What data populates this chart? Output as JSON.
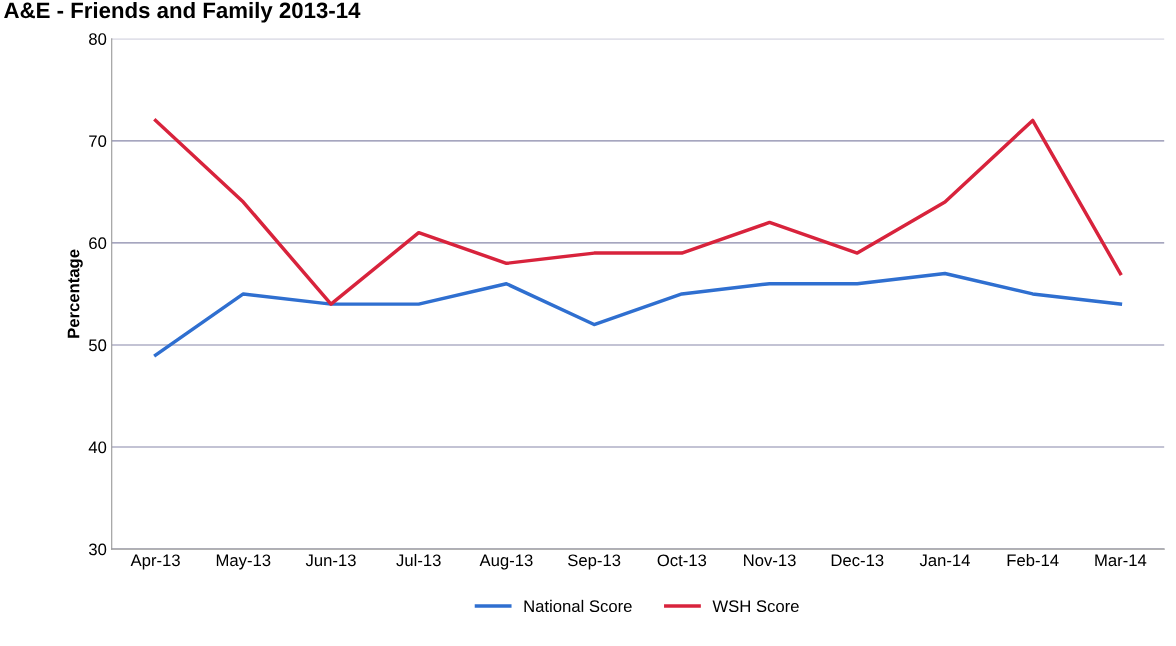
{
  "chart_data": {
    "type": "line",
    "title": "A&E - Friends and Family 2013-14",
    "ylabel": "Percentage",
    "categories": [
      "Apr-13",
      "May-13",
      "Jun-13",
      "Jul-13",
      "Aug-13",
      "Sep-13",
      "Oct-13",
      "Nov-13",
      "Dec-13",
      "Jan-14",
      "Feb-14",
      "Mar-14"
    ],
    "series": [
      {
        "name": "National Score",
        "color": "#2f6fd0",
        "values": [
          49,
          55,
          54,
          54,
          56,
          52,
          55,
          56,
          56,
          57,
          55,
          54
        ]
      },
      {
        "name": "WSH Score",
        "color": "#d8233c",
        "values": [
          72,
          64,
          54,
          61,
          58,
          59,
          59,
          62,
          59,
          64,
          72,
          57
        ]
      }
    ],
    "ylim": [
      30,
      80
    ],
    "yticks": [
      30,
      40,
      50,
      60,
      70,
      80
    ],
    "grid": "y",
    "legend": "bottom",
    "marker": "none",
    "line_style": "solid"
  }
}
